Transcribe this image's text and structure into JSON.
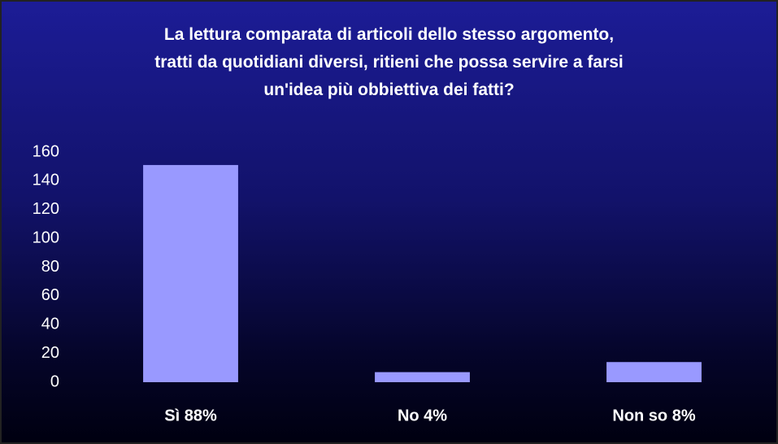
{
  "chart_data": {
    "type": "bar",
    "title": "La lettura comparata di articoli dello stesso argomento,\ntratti da quotidiani diversi, ritieni che possa servire a farsi\nun'idea più obbiettiva dei fatti?",
    "categories": [
      "Sì 88%",
      "No 4%",
      "Non so 8%"
    ],
    "values": [
      151,
      7,
      14
    ],
    "color": "#9999ff",
    "ylim": [
      0,
      160
    ],
    "yticks": [
      0,
      20,
      40,
      60,
      80,
      100,
      120,
      140,
      160
    ],
    "grid": false
  }
}
